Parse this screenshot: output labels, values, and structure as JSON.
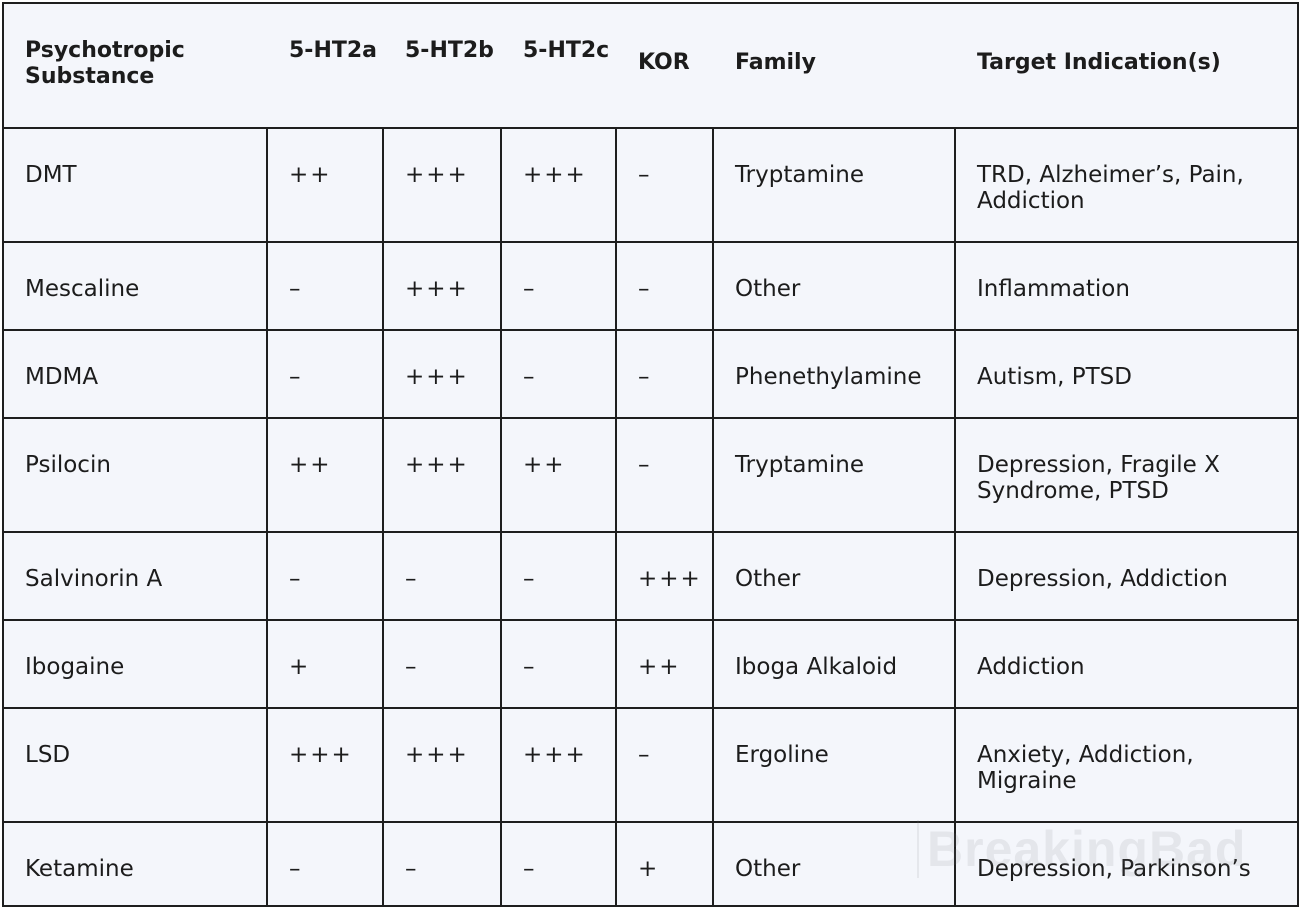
{
  "table": {
    "headers": [
      "Psychotropic Substance",
      "5-HT2a",
      "5-HT2b",
      "5-HT2c",
      "KOR",
      "Family",
      "Target Indication(s)"
    ],
    "rows": [
      [
        "DMT",
        "++",
        "+++",
        "+++",
        "–",
        "Tryptamine",
        "TRD, Alzheimer’s, Pain, Addiction"
      ],
      [
        "Mescaline",
        "–",
        "+++",
        "–",
        "–",
        "Other",
        "Inflammation"
      ],
      [
        "MDMA",
        "–",
        "+++",
        "–",
        "–",
        "Phenethylamine",
        "Autism, PTSD"
      ],
      [
        "Psilocin",
        "++",
        "+++",
        "++",
        "–",
        "Tryptamine",
        "Depression, Fragile X Syndrome, PTSD"
      ],
      [
        "Salvinorin A",
        "–",
        "–",
        "–",
        "+++",
        "Other",
        "Depression, Addiction"
      ],
      [
        "Ibogaine",
        "+",
        "–",
        "–",
        "++",
        "Iboga Alkaloid",
        "Addiction"
      ],
      [
        "LSD",
        "+++",
        "+++",
        "+++",
        "–",
        "Ergoline",
        "Anxiety, Addiction, Migraine"
      ],
      [
        "Ketamine",
        "–",
        "–",
        "–",
        "+",
        "Other",
        "Depression, Parkinson’s"
      ]
    ]
  },
  "watermark": {
    "text": "BreakingBad"
  },
  "colors": {
    "background": "#f4f6fb",
    "border": "#1e1e1e",
    "text": "#1c1c1c"
  }
}
